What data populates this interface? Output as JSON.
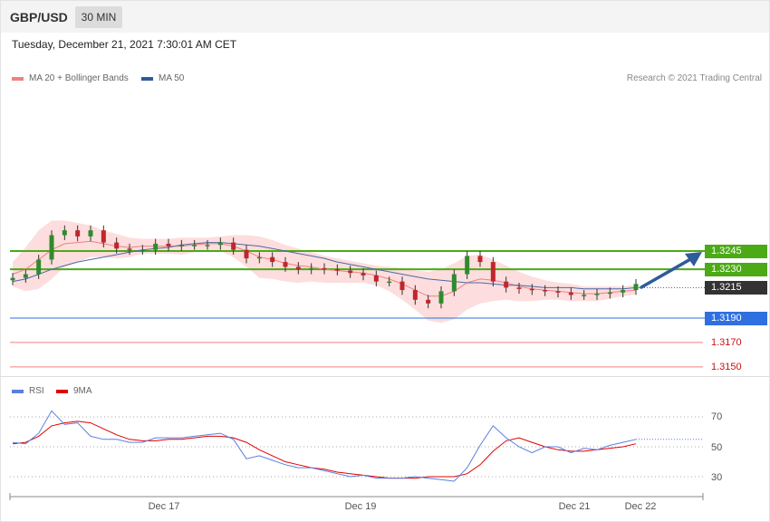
{
  "header": {
    "pair": "GBP/USD",
    "timeframe": "30 MIN"
  },
  "timestamp": "Tuesday, December 21, 2021 7:30:01 AM CET",
  "legend": {
    "ma20_bb": "MA 20 + Bollinger Bands",
    "ma50": "MA 50",
    "credit": "Research © 2021 Trading Central"
  },
  "levels": {
    "resistance2": "1.3245",
    "resistance1": "1.3230",
    "last": "1.3215",
    "support1": "1.3190",
    "support2": "1.3170",
    "support3": "1.3150"
  },
  "rsi_legend": {
    "rsi": "RSI",
    "ma9": "9MA"
  },
  "x_axis": {
    "dec17": "Dec 17",
    "dec19": "Dec 19",
    "dec21": "Dec 21",
    "dec22": "Dec 22"
  },
  "chart_data": [
    {
      "type": "candlestick",
      "title": "GBP/USD 30 MIN",
      "x_ticks": [
        "Dec 17",
        "Dec 19",
        "Dec 21",
        "Dec 22"
      ],
      "y_levels": [
        1.3245,
        1.323,
        1.3215,
        1.319,
        1.317,
        1.315
      ],
      "y_range": [
        1.315,
        1.327
      ],
      "close_series": [
        1.3223,
        1.3226,
        1.3238,
        1.3258,
        1.3262,
        1.3257,
        1.3262,
        1.3252,
        1.3247,
        1.3246,
        1.3246,
        1.3251,
        1.3249,
        1.325,
        1.325,
        1.325,
        1.3252,
        1.3246,
        1.3239,
        1.324,
        1.3236,
        1.3232,
        1.323,
        1.3231,
        1.323,
        1.3229,
        1.3227,
        1.3225,
        1.322,
        1.322,
        1.3213,
        1.3205,
        1.3202,
        1.3212,
        1.3226,
        1.3241,
        1.3236,
        1.322,
        1.3215,
        1.3214,
        1.3213,
        1.3212,
        1.3211,
        1.3209,
        1.3209,
        1.321,
        1.3211,
        1.3213,
        1.3218
      ],
      "ma20_series": [
        1.3226,
        1.323,
        1.3238,
        1.3246,
        1.3251,
        1.3252,
        1.3253,
        1.3251,
        1.3249,
        1.3248,
        1.3249,
        1.3249,
        1.3249,
        1.3249,
        1.325,
        1.3251,
        1.3251,
        1.3249,
        1.3245,
        1.324,
        1.3238,
        1.3235,
        1.3233,
        1.3232,
        1.323,
        1.3229,
        1.3228,
        1.3227,
        1.3225,
        1.3222,
        1.3218,
        1.3213,
        1.3208,
        1.3208,
        1.3212,
        1.3219,
        1.3222,
        1.3221,
        1.3219,
        1.3216,
        1.3214,
        1.3213,
        1.3212,
        1.3211,
        1.321,
        1.321,
        1.3211,
        1.3212,
        1.3213
      ],
      "ma50_series": [
        1.322,
        1.3222,
        1.3226,
        1.323,
        1.3233,
        1.3236,
        1.3238,
        1.324,
        1.3242,
        1.3244,
        1.3246,
        1.3247,
        1.3248,
        1.325,
        1.3251,
        1.3252,
        1.3252,
        1.3251,
        1.325,
        1.3249,
        1.3247,
        1.3245,
        1.3243,
        1.3241,
        1.3239,
        1.3236,
        1.3234,
        1.3232,
        1.323,
        1.3228,
        1.3226,
        1.3224,
        1.3222,
        1.3221,
        1.322,
        1.3219,
        1.3219,
        1.3218,
        1.3217,
        1.3217,
        1.3216,
        1.3215,
        1.3215,
        1.3215,
        1.3214,
        1.3214,
        1.3214,
        1.3214,
        1.3215
      ],
      "bb_upper": [
        1.3236,
        1.3248,
        1.3262,
        1.327,
        1.327,
        1.3268,
        1.3266,
        1.3262,
        1.3259,
        1.3256,
        1.3255,
        1.3255,
        1.3255,
        1.3256,
        1.3256,
        1.3256,
        1.3257,
        1.3258,
        1.3258,
        1.3257,
        1.3254,
        1.325,
        1.3247,
        1.3244,
        1.3241,
        1.3239,
        1.3237,
        1.3235,
        1.3233,
        1.3232,
        1.3231,
        1.3229,
        1.3228,
        1.323,
        1.3235,
        1.3241,
        1.3242,
        1.3238,
        1.3233,
        1.3228,
        1.3224,
        1.3221,
        1.3219,
        1.3218,
        1.3216,
        1.3216,
        1.3216,
        1.3216,
        1.3217
      ],
      "bb_lower": [
        1.3216,
        1.3212,
        1.3214,
        1.3222,
        1.3232,
        1.3236,
        1.324,
        1.324,
        1.3239,
        1.324,
        1.3243,
        1.3243,
        1.3243,
        1.3242,
        1.3244,
        1.3246,
        1.3245,
        1.324,
        1.3232,
        1.3223,
        1.3222,
        1.322,
        1.3219,
        1.322,
        1.3219,
        1.3219,
        1.3219,
        1.3219,
        1.3217,
        1.3212,
        1.3205,
        1.3197,
        1.3188,
        1.3186,
        1.3189,
        1.3197,
        1.3202,
        1.3204,
        1.3205,
        1.3204,
        1.3204,
        1.3205,
        1.3205,
        1.3204,
        1.3204,
        1.3204,
        1.3206,
        1.3208,
        1.3209
      ]
    },
    {
      "type": "line",
      "title": "RSI",
      "x_ticks": [
        "Dec 17",
        "Dec 19",
        "Dec 21",
        "Dec 22"
      ],
      "y_ticks": [
        30,
        50,
        70
      ],
      "y_range": [
        15,
        85
      ],
      "series": [
        {
          "name": "RSI",
          "values": [
            53,
            52,
            59,
            74,
            65,
            66,
            57,
            55,
            55,
            53,
            53,
            56,
            56,
            56,
            57,
            58,
            59,
            55,
            42,
            44,
            41,
            38,
            36,
            36,
            34,
            32,
            30,
            31,
            29,
            29,
            29,
            30,
            29,
            28,
            27,
            36,
            51,
            64,
            56,
            50,
            46,
            50,
            50,
            46,
            49,
            48,
            51,
            53,
            55
          ]
        },
        {
          "name": "9MA",
          "values": [
            52,
            53,
            57,
            64,
            66,
            67,
            66,
            62,
            58,
            55,
            54,
            54,
            55,
            55,
            56,
            57,
            57,
            56,
            53,
            48,
            44,
            40,
            38,
            36,
            35,
            33,
            32,
            31,
            30,
            29,
            29,
            29,
            30,
            30,
            30,
            32,
            38,
            47,
            54,
            56,
            53,
            50,
            48,
            47,
            47,
            48,
            49,
            50,
            52
          ]
        }
      ]
    }
  ]
}
